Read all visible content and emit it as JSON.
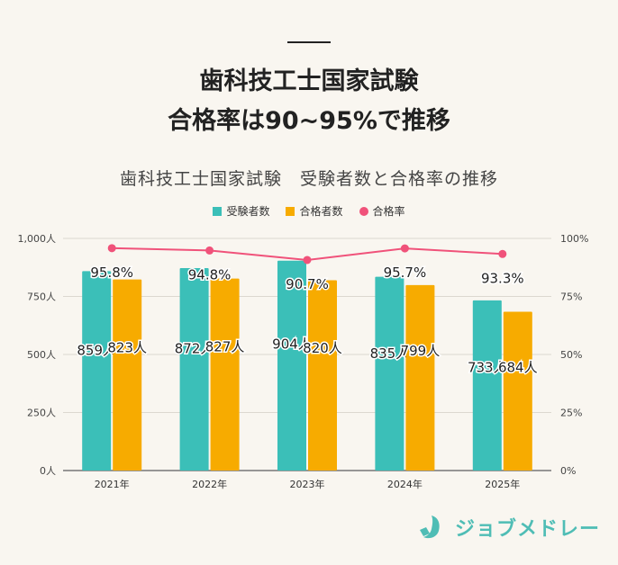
{
  "headline": [
    "歯科技工士国家試験",
    "合格率は90~95%で推移"
  ],
  "logo": {
    "text": "ジョブメドレー"
  },
  "colors": {
    "examinees": "#3bbfb8",
    "passers": "#f7ab00",
    "rate": "#f0527a"
  },
  "chart_data": {
    "type": "bar",
    "title": "歯科技工士国家試験　受験者数と合格率の推移",
    "categories": [
      "2021年",
      "2022年",
      "2023年",
      "2024年",
      "2025年"
    ],
    "series": [
      {
        "name": "受験者数",
        "type": "bar",
        "axis": "left",
        "values": [
          859,
          872,
          904,
          835,
          733
        ],
        "labels": [
          "859人",
          "872人",
          "904人",
          "835人",
          "733人"
        ]
      },
      {
        "name": "合格者数",
        "type": "bar",
        "axis": "left",
        "values": [
          823,
          827,
          820,
          799,
          684
        ],
        "labels": [
          "823人",
          "827人",
          "820人",
          "799人",
          "684人"
        ]
      },
      {
        "name": "合格率",
        "type": "line",
        "axis": "right",
        "values": [
          95.8,
          94.8,
          90.7,
          95.7,
          93.3
        ],
        "labels": [
          "95.8%",
          "94.8%",
          "90.7%",
          "95.7%",
          "93.3%"
        ]
      }
    ],
    "left_axis": {
      "ylim": [
        0,
        1000
      ],
      "ticks": [
        "0人",
        "250人",
        "500人",
        "750人",
        "1,000人"
      ]
    },
    "right_axis": {
      "ylim": [
        0,
        100
      ],
      "ticks": [
        "0%",
        "25%",
        "50%",
        "75%",
        "100%"
      ]
    },
    "grid": true,
    "legend": "top"
  }
}
